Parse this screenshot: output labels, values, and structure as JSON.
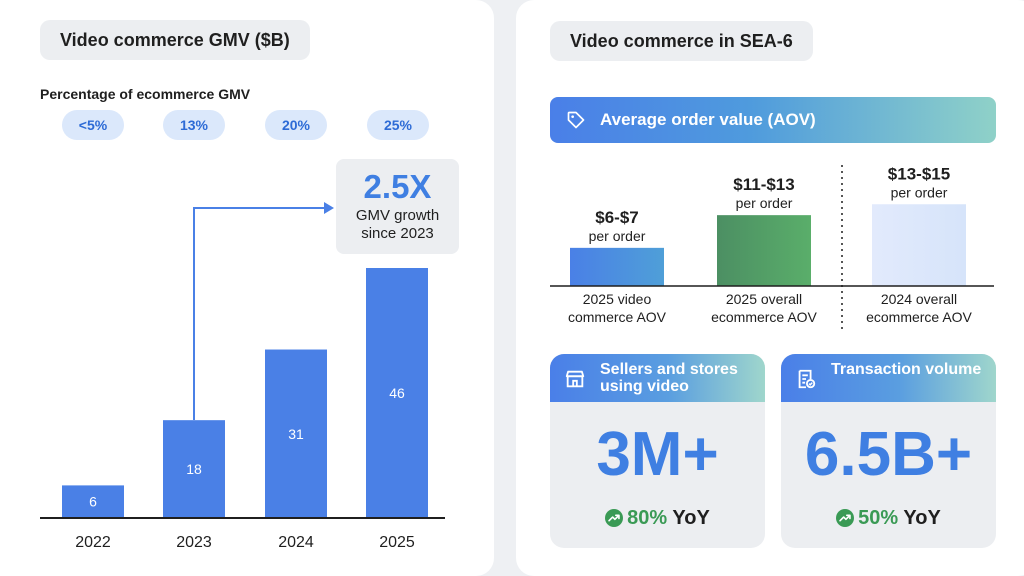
{
  "left": {
    "title": "Video commerce GMV ($B)",
    "pct_heading": "Percentage of ecommerce GMV",
    "pct_pills": [
      "<5%",
      "13%",
      "20%",
      "25%"
    ],
    "growth": {
      "value": "2.5X",
      "text": "GMV growth since 2023"
    }
  },
  "right": {
    "title": "Video commerce in SEA-6",
    "aov_header": "Average order value (AOV)",
    "sellers": {
      "title": "Sellers and stores using video",
      "value": "3M+",
      "yoy_pct": "80%",
      "yoy_label": "YoY"
    },
    "transactions": {
      "title": "Transaction volume",
      "value": "6.5B+",
      "yoy_pct": "50%",
      "yoy_label": "YoY"
    }
  },
  "colors": {
    "bar_blue": "#4a80e6",
    "aov_green": "#52a864",
    "aov_light": "#dce7fb",
    "accent": "#3f7fe2",
    "growth_green": "#3a9a55"
  },
  "chart_data": [
    {
      "type": "bar",
      "title": "Video commerce GMV ($B)",
      "categories": [
        "2022",
        "2023",
        "2024",
        "2025"
      ],
      "values": [
        6,
        18,
        31,
        46
      ],
      "data_labels": [
        "6",
        "18",
        "31",
        "46"
      ],
      "ylim": [
        0,
        46
      ],
      "xlabel": "",
      "ylabel": ""
    },
    {
      "type": "bar",
      "title": "Average order value (AOV)",
      "categories": [
        "2025 video commerce AOV",
        "2025 overall ecommerce AOV",
        "2024 overall ecommerce AOV"
      ],
      "values_low": [
        6,
        11,
        13
      ],
      "values_high": [
        7,
        13,
        15
      ],
      "value_labels": [
        "$6-$7",
        "$11-$13",
        "$13-$15"
      ],
      "sub_label": "per order",
      "unit": "USD"
    }
  ]
}
